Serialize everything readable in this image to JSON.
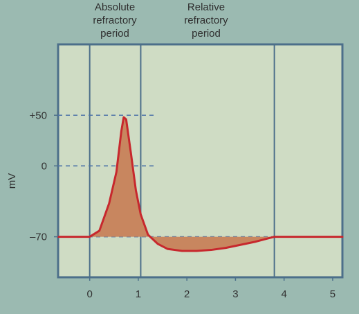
{
  "chart_data": {
    "type": "line",
    "annotations": {
      "absolute_refractory_period": [
        "Absolute",
        "refractory",
        "period"
      ],
      "relative_refractory_period": [
        "Relative",
        "refractory",
        "period"
      ]
    },
    "ylabel": "mV",
    "x_ticks": [
      "0",
      "1",
      "2",
      "3",
      "4",
      "5"
    ],
    "y_ticks": [
      "+50",
      "0",
      "–70"
    ],
    "xlim": [
      -0.65,
      5.2
    ],
    "ylim": [
      -110,
      120
    ],
    "series": [
      {
        "name": "",
        "x": [
          -0.65,
          0.0,
          0.2,
          0.4,
          0.55,
          0.65,
          0.7,
          0.75,
          0.85,
          0.95,
          1.05,
          1.2,
          1.4,
          1.6,
          1.9,
          2.2,
          2.5,
          2.8,
          3.1,
          3.4,
          3.8,
          4.2,
          4.8,
          5.2
        ],
        "y": [
          -70,
          -70,
          -64,
          -37,
          -6,
          34,
          48,
          46,
          12,
          -24,
          -48,
          -68,
          -77,
          -82,
          -84,
          -84,
          -83,
          -81,
          -78,
          -75,
          -70,
          -70,
          -70,
          -70
        ]
      }
    ],
    "refractory_boundaries": [
      0,
      1.05,
      3.8
    ],
    "reference_levels": [
      50,
      0,
      -70
    ],
    "colors": {
      "curve": "#c7282d",
      "fill": "#c8865f",
      "panel_border": "#4c6f8a",
      "dashed": "#4e74a8",
      "plot_bg": "#cfdcc4",
      "outer_bg": "#9bbab1"
    }
  }
}
